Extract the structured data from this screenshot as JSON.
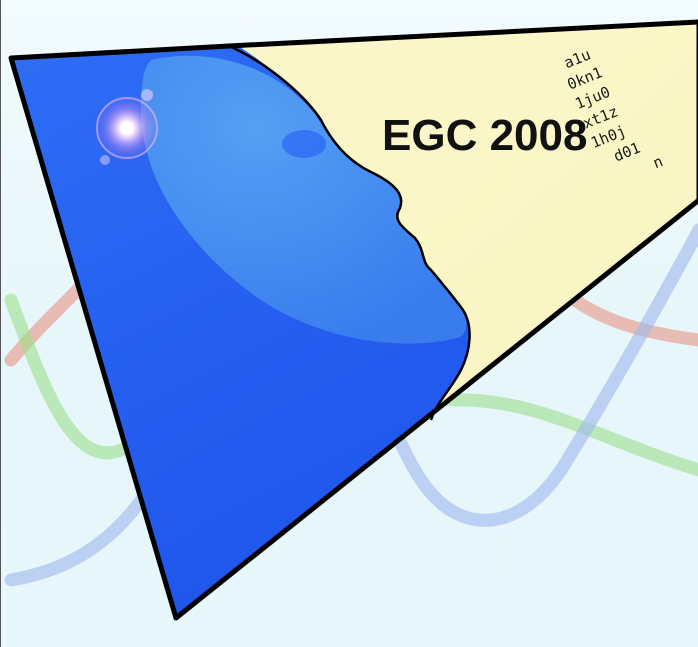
{
  "logo": {
    "title": "EGC 2008",
    "code_lines": [
      "a1u",
      "0kn1",
      "1ju0",
      "xt1z",
      "1h0j",
      "d01",
      "n"
    ]
  },
  "colors": {
    "face_blue": "#2a63f2",
    "face_light_blue": "#4b97f1",
    "panel_yellow": "#fbf8c8",
    "curve_red": "#e88c7c",
    "curve_green": "#9fe08c",
    "curve_blue": "#9fb8ec",
    "outline": "#000000"
  }
}
